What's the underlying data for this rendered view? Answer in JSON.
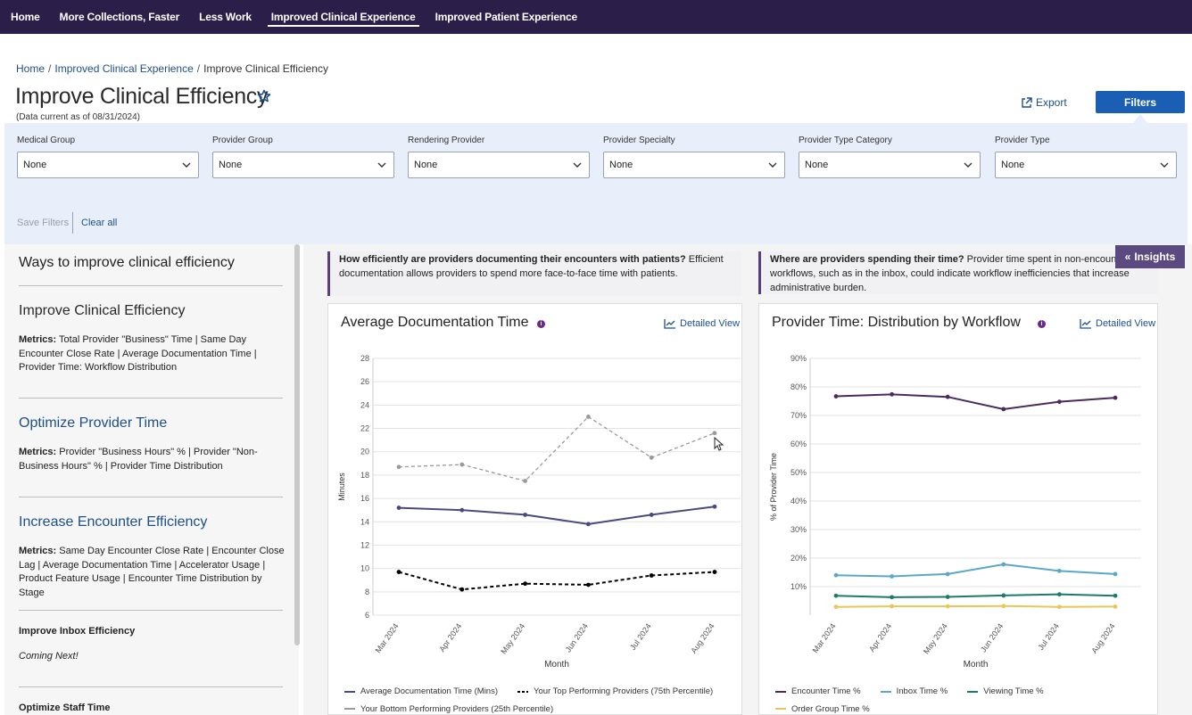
{
  "nav": {
    "items": [
      {
        "label": "Home",
        "active": false
      },
      {
        "label": "More Collections, Faster",
        "active": false
      },
      {
        "label": "Less Work",
        "active": false
      },
      {
        "label": "Improved Clinical Experience",
        "active": true
      },
      {
        "label": "Improved Patient Experience",
        "active": false
      }
    ]
  },
  "breadcrumb": {
    "home": "Home",
    "section": "Improved Clinical Experience",
    "current": "Improve Clinical Efficiency",
    "sep": "/"
  },
  "header": {
    "title": "Improve Clinical Efficiency",
    "data_current": "(Data current as of 08/31/2024)",
    "export_label": "Export",
    "filters_label": "Filters"
  },
  "filters": {
    "groups": [
      {
        "label": "Medical Group",
        "value": "None"
      },
      {
        "label": "Provider Group",
        "value": "None"
      },
      {
        "label": "Rendering Provider",
        "value": "None"
      },
      {
        "label": "Provider Specialty",
        "value": "None"
      },
      {
        "label": "Provider Type Category",
        "value": "None"
      },
      {
        "label": "Provider Type",
        "value": "None"
      }
    ],
    "save_label": "Save Filters",
    "clear_label": "Clear all"
  },
  "sidebar": {
    "heading": "Ways to improve clinical efficiency",
    "metrics_label": "Metrics:",
    "sections": [
      {
        "title": "Improve Clinical Efficiency",
        "metrics": " Total Provider \"Business\" Time | Same Day Encounter Close Rate | Average Documentation Time | Provider Time: Workflow Distribution"
      },
      {
        "title": "Optimize Provider Time",
        "metrics": " Provider \"Business Hours\" % | Provider \"Non-Business Hours\" % | Provider Time Distribution"
      },
      {
        "title": "Increase Encounter Efficiency",
        "metrics": " Same Day Encounter Close Rate | Encounter Close Lag | Average Documentation Time | Accelerator Usage | Product Feature Usage | Encounter Time Distribution by Stage"
      }
    ],
    "inbox_title": "Improve Inbox Efficiency",
    "inbox_status": "Coming Next!",
    "next_title": "Optimize Staff Time"
  },
  "main": {
    "insights_label": "Insights",
    "info_left_bold": "How efficiently are providers documenting their encounters with patients?",
    "info_left_text": " Efficient documentation allows providers to spend more face-to-face time with patients.",
    "info_right_bold": "Where are providers spending their time?",
    "info_right_text": " Provider time spent in non-encounter workflows, such as in the inbox, could indicate workflow inefficiencies that increase administrative burden.",
    "detailed_view_label": "Detailed View",
    "info_icon_glyph": "i"
  },
  "colors": {
    "nav_bg": "#2b1f4a",
    "accent_blue": "#1a5fb4",
    "link": "#1d4f8c",
    "purple": "#4b3a78",
    "encounter": "#4b2a5e",
    "inbox": "#5aa8c8",
    "viewing": "#1f7a6e",
    "order": "#e8c65a"
  },
  "chart_data": [
    {
      "type": "line",
      "title": "Average Documentation Time",
      "xlabel": "Month",
      "ylabel": "Minutes",
      "categories": [
        "Mar 2024",
        "Apr 2024",
        "May 2024",
        "Jun 2024",
        "Jul 2024",
        "Aug 2024"
      ],
      "ylim": [
        6,
        28
      ],
      "yticks": [
        6,
        8,
        10,
        12,
        14,
        16,
        18,
        20,
        22,
        24,
        26,
        28
      ],
      "grid": true,
      "legend": "bottom",
      "series": [
        {
          "name": "Average Documentation Time (Mins)",
          "values": [
            15.2,
            15.0,
            14.6,
            13.8,
            14.6,
            15.3
          ],
          "color": "#4b4a7e",
          "style": "solid"
        },
        {
          "name": "Your Top Performing Providers (75th Percentile)",
          "values": [
            9.7,
            8.2,
            8.7,
            8.6,
            9.4,
            9.7
          ],
          "color": "#000000",
          "style": "dashed"
        },
        {
          "name": "Your Bottom Performing Providers (25th Percentile)",
          "values": [
            18.7,
            18.9,
            17.5,
            23.0,
            19.5,
            21.6
          ],
          "color": "#9a9a9a",
          "style": "dashed"
        }
      ]
    },
    {
      "type": "line",
      "title": "Provider Time: Distribution by Workflow",
      "xlabel": "Month",
      "ylabel": "% of Provider Time",
      "categories": [
        "Mar 2024",
        "Apr 2024",
        "May 2024",
        "Jun 2024",
        "Jul 2024",
        "Aug 2024"
      ],
      "ylim": [
        0,
        90
      ],
      "yticks": [
        10,
        20,
        30,
        40,
        50,
        60,
        70,
        80,
        90
      ],
      "tick_suffix": "%",
      "grid": true,
      "legend": "bottom",
      "series": [
        {
          "name": "Encounter Time %",
          "values": [
            76.7,
            77.4,
            76.5,
            72.2,
            74.8,
            76.2
          ],
          "color": "#4b2a5e"
        },
        {
          "name": "Inbox Time %",
          "values": [
            14.0,
            13.6,
            14.4,
            17.8,
            15.5,
            14.4
          ],
          "color": "#5aa8c8"
        },
        {
          "name": "Viewing Time %",
          "values": [
            6.8,
            6.3,
            6.4,
            6.9,
            7.3,
            6.8
          ],
          "color": "#1f7a6e"
        },
        {
          "name": "Order Group Time %",
          "values": [
            2.9,
            3.1,
            3.1,
            3.2,
            2.9,
            3.0
          ],
          "color": "#e8c65a"
        }
      ]
    }
  ]
}
